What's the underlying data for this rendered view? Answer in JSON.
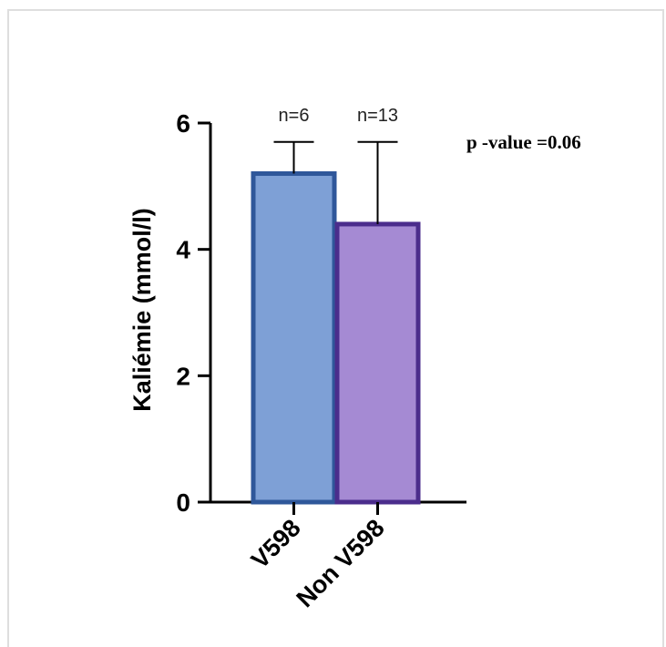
{
  "chart_data": {
    "type": "bar",
    "categories": [
      "V598",
      "Non V598"
    ],
    "values": [
      5.2,
      4.4
    ],
    "error_upper": [
      5.7,
      5.7
    ],
    "counts": [
      "n=6",
      "n=13"
    ],
    "ylabel": "Kaliémie (mmol/l)",
    "xlabel": "",
    "ylim": [
      0,
      6
    ],
    "yticks": [
      "0",
      "2",
      "4",
      "6"
    ],
    "annotation": "p -value =0.06",
    "grid": false,
    "colors": {
      "fills": [
        "#7ea0d6",
        "#a58ad3"
      ],
      "strokes": [
        "#2f579a",
        "#4b2d8c"
      ],
      "axis": "#000000"
    }
  }
}
